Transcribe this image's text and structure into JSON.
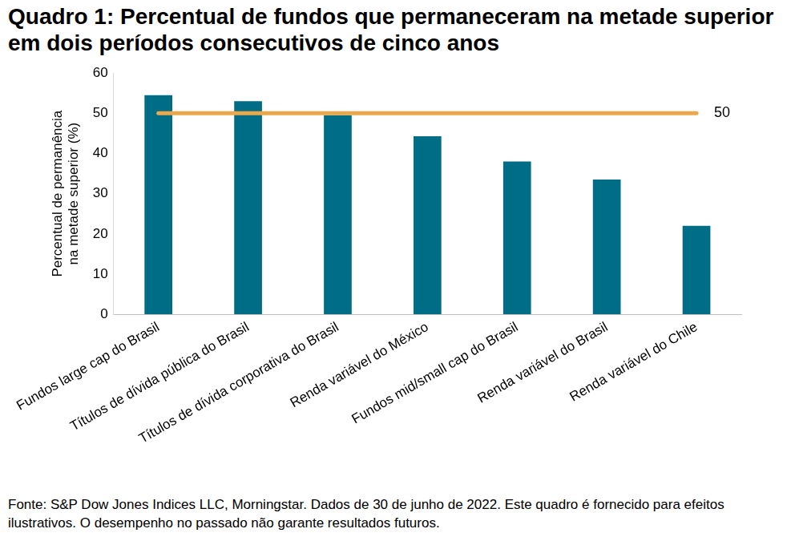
{
  "chart_data": {
    "type": "bar",
    "title": "Quadro 1: Percentual de fundos que permaneceram na metade superior em dois períodos consecutivos de cinco anos",
    "y_label": "Percentual de permanência na metade superior (%)",
    "categories": [
      "Fundos large cap do Brasil",
      "Títulos de dívida pública do Brasil",
      "Títulos de dívida corporativa do Brasil",
      "Renda variável do México",
      "Fundos mid/small cap do Brasil",
      "Renda variável do Brasil",
      "Renda variável do Chile"
    ],
    "values": [
      54.5,
      53,
      49.5,
      44.3,
      38,
      33.5,
      22
    ],
    "color": "#006d86",
    "ylim": [
      0,
      60
    ],
    "yticks": [
      0,
      10,
      20,
      30,
      40,
      50,
      60
    ],
    "grid": false,
    "reference_line": 50,
    "source": "Fonte: S&P Dow Jones Indices LLC, Morningstar. Dados de 30 de junho de 2022. Este quadro é fornecido para efeitos ilustrativos. O desempenho no passado não garante resultados futuros."
  }
}
